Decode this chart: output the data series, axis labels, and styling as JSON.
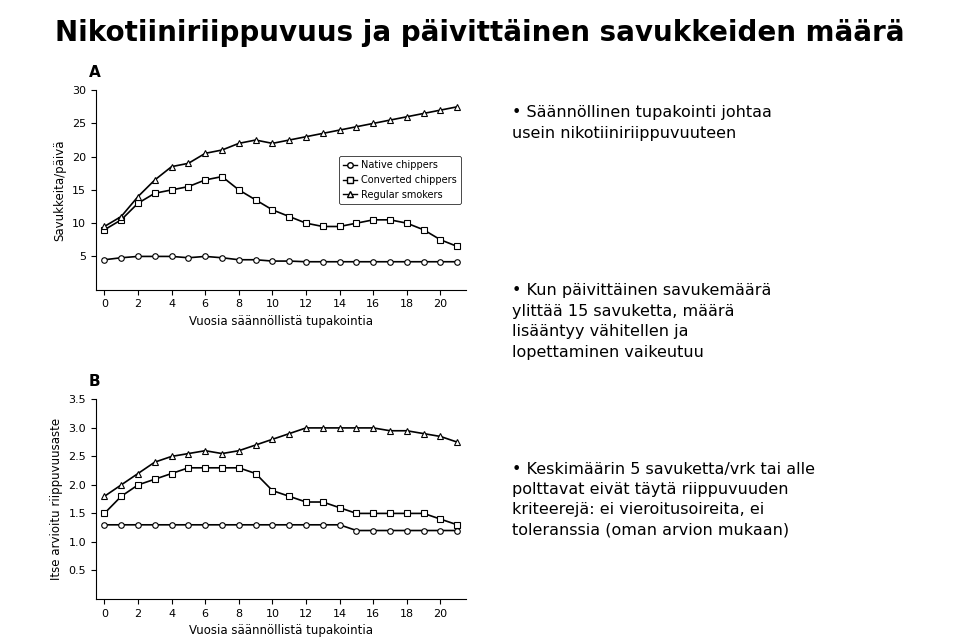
{
  "title": "Nikotiiniriippuvuus ja päivittäinen savukkeiden määrä",
  "title_fontsize": 20,
  "xlabel": "Vuosia säännöllistä tupakointia",
  "ylabel_a": "Savukkeita/päivä",
  "ylabel_b": "Itse arvioitu riippuvuusaste",
  "label_a": "A",
  "label_b": "B",
  "legend_labels": [
    "Native chippers",
    "Converted chippers",
    "Regular smokers"
  ],
  "x": [
    0,
    1,
    2,
    3,
    4,
    5,
    6,
    7,
    8,
    9,
    10,
    11,
    12,
    13,
    14,
    15,
    16,
    17,
    18,
    19,
    20,
    21
  ],
  "plot_a_native": [
    4.5,
    4.8,
    5.0,
    5.0,
    5.0,
    4.8,
    5.0,
    4.8,
    4.5,
    4.5,
    4.3,
    4.3,
    4.2,
    4.2,
    4.2,
    4.2,
    4.2,
    4.2,
    4.2,
    4.2,
    4.2,
    4.2
  ],
  "plot_a_converted": [
    9.0,
    10.5,
    13.0,
    14.5,
    15.0,
    15.5,
    16.5,
    17.0,
    15.0,
    13.5,
    12.0,
    11.0,
    10.0,
    9.5,
    9.5,
    10.0,
    10.5,
    10.5,
    10.0,
    9.0,
    7.5,
    6.5
  ],
  "plot_a_regular": [
    9.5,
    11.0,
    14.0,
    16.5,
    18.5,
    19.0,
    20.5,
    21.0,
    22.0,
    22.5,
    22.0,
    22.5,
    23.0,
    23.5,
    24.0,
    24.5,
    25.0,
    25.5,
    26.0,
    26.5,
    27.0,
    27.5
  ],
  "plot_b_native": [
    1.3,
    1.3,
    1.3,
    1.3,
    1.3,
    1.3,
    1.3,
    1.3,
    1.3,
    1.3,
    1.3,
    1.3,
    1.3,
    1.3,
    1.3,
    1.2,
    1.2,
    1.2,
    1.2,
    1.2,
    1.2,
    1.2
  ],
  "plot_b_converted": [
    1.5,
    1.8,
    2.0,
    2.1,
    2.2,
    2.3,
    2.3,
    2.3,
    2.3,
    2.2,
    1.9,
    1.8,
    1.7,
    1.7,
    1.6,
    1.5,
    1.5,
    1.5,
    1.5,
    1.5,
    1.4,
    1.3
  ],
  "plot_b_regular": [
    1.8,
    2.0,
    2.2,
    2.4,
    2.5,
    2.55,
    2.6,
    2.55,
    2.6,
    2.7,
    2.8,
    2.9,
    3.0,
    3.0,
    3.0,
    3.0,
    3.0,
    2.95,
    2.95,
    2.9,
    2.85,
    2.75
  ],
  "ylim_a": [
    0,
    30
  ],
  "yticks_a": [
    5,
    10,
    15,
    20,
    25,
    30
  ],
  "ylim_b": [
    0,
    3.5
  ],
  "yticks_b": [
    0.5,
    1.0,
    1.5,
    2.0,
    2.5,
    3.0,
    3.5
  ],
  "xticks": [
    0,
    2,
    4,
    6,
    8,
    10,
    12,
    14,
    16,
    18,
    20
  ],
  "xlim": [
    -0.5,
    21.5
  ],
  "bullet_texts": [
    "Säännöllinen tupakointi johtaa\nusein nikotiiniriippuvuuteen",
    "Kun päivittäinen savukemäärä\nylittää 15 savuketta, määrä\nlisääntyy vähitellen ja\nlopettaminen vaikeutuu",
    "Keskimäärin 5 savuketta/vrk tai alle\npolttavat eivät täytä riippuvuuden\nkriteerejä: ei vieroitusoireita, ei\ntoleranssia (oman arvion mukaan)"
  ],
  "marker_native": "o",
  "marker_converted": "s",
  "marker_regular": "^",
  "line_color": "#000000",
  "bg_color": "#ffffff",
  "text_color": "#000000",
  "markersize": 4,
  "linewidth": 1.2
}
